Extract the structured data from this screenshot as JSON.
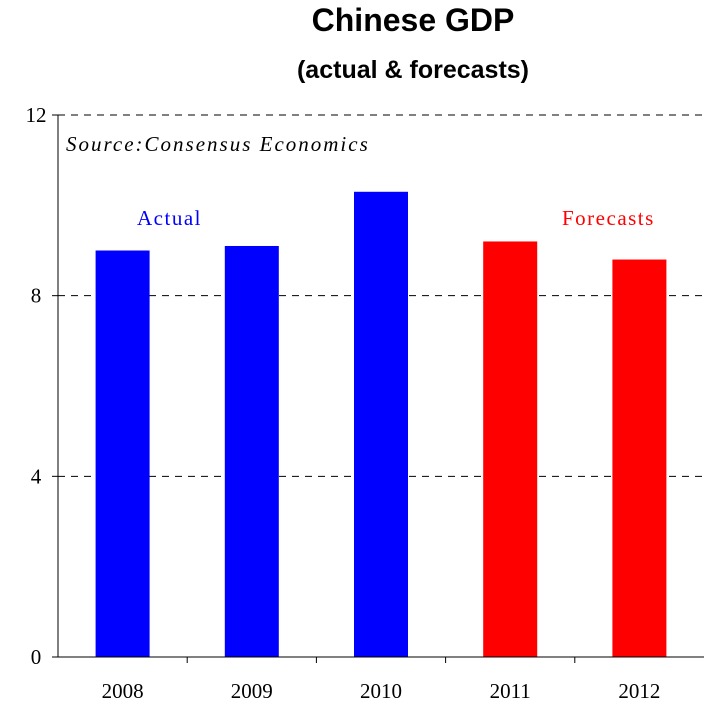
{
  "chart_data": {
    "type": "bar",
    "title": "Chinese GDP",
    "subtitle": "(actual & forecasts)",
    "source_note": "Source:Consensus Economics",
    "categories": [
      "2008",
      "2009",
      "2010",
      "2011",
      "2012"
    ],
    "values": [
      9.0,
      9.1,
      10.3,
      9.2,
      8.8
    ],
    "colors": [
      "#0000ff",
      "#0000ff",
      "#0000ff",
      "#ff0000",
      "#ff0000"
    ],
    "annotations": [
      {
        "text": "Actual",
        "color": "#0000ff"
      },
      {
        "text": "Forecasts",
        "color": "#ff0000"
      }
    ],
    "yticks": [
      "0",
      "4",
      "8",
      "12"
    ],
    "ylim": [
      0,
      12
    ],
    "grid": "dashed horizontal",
    "legend": "none"
  }
}
